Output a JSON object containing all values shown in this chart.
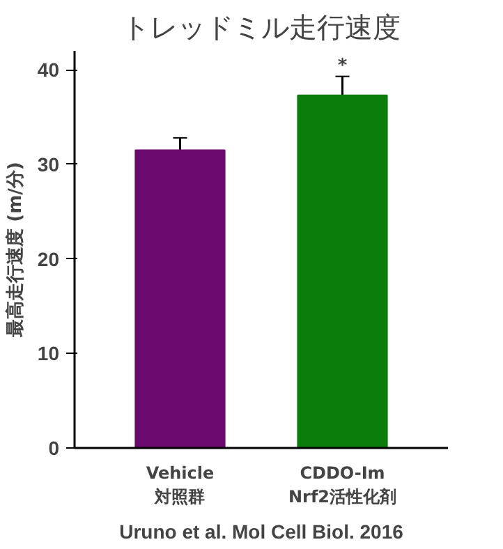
{
  "chart_data": {
    "type": "bar",
    "title": "トレッドミル走行速度",
    "ylabel": "最高走行速度 (m/分)",
    "categories": [
      "Vehicle\n対照群",
      "CDDO-Im\nNrf2活性化剤"
    ],
    "values": [
      31.5,
      37.3
    ],
    "errors": [
      1.3,
      2.0
    ],
    "colors": [
      "#6b0a6e",
      "#0b7d0b"
    ],
    "ylim": [
      0,
      42
    ],
    "yticks": [
      0,
      10,
      20,
      30,
      40
    ],
    "grid": false,
    "annotations": [
      "*",
      "Uruno et al. Mol Cell Biol. 2016"
    ]
  }
}
